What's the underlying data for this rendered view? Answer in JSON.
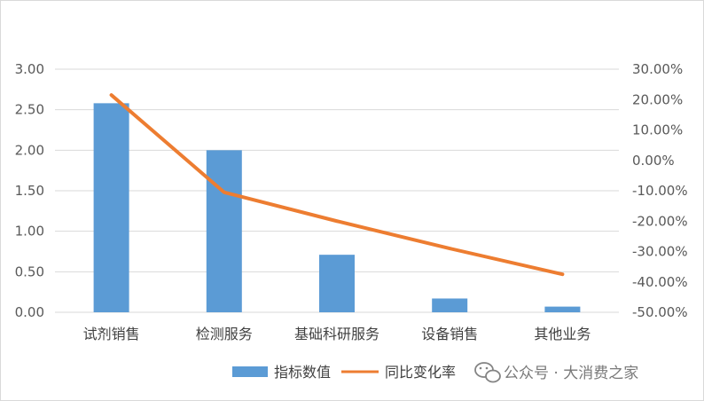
{
  "chart_data": {
    "type": "bar",
    "categories": [
      "试剂销售",
      "检测服务",
      "基础科研服务",
      "设备销售",
      "其他业务"
    ],
    "series": [
      {
        "name": "指标数值",
        "type": "bar",
        "axis": "left",
        "values": [
          2.58,
          2.0,
          0.71,
          0.17,
          0.07
        ]
      },
      {
        "name": "同比变化率",
        "type": "line",
        "axis": "right",
        "values": [
          21.5,
          -10.5,
          -20.0,
          -29.0,
          -37.5
        ]
      }
    ],
    "y_left": {
      "ticks": [
        "0.00",
        "0.50",
        "1.00",
        "1.50",
        "2.00",
        "2.50",
        "3.00"
      ],
      "ylim": [
        0,
        3
      ]
    },
    "y_right": {
      "ticks": [
        "-50.00%",
        "-40.00%",
        "-30.00%",
        "-20.00%",
        "-10.00%",
        "0.00%",
        "10.00%",
        "20.00%",
        "30.00%"
      ],
      "ylim": [
        -50,
        30
      ],
      "unit": "%"
    },
    "grid": true,
    "legend_position": "bottom",
    "colors": {
      "bar": "#5b9bd5",
      "line": "#ed7d31",
      "grid": "#d9d9d9"
    }
  },
  "watermark": {
    "text": "公众号 · 大消费之家",
    "icon": "wechat-icon"
  }
}
